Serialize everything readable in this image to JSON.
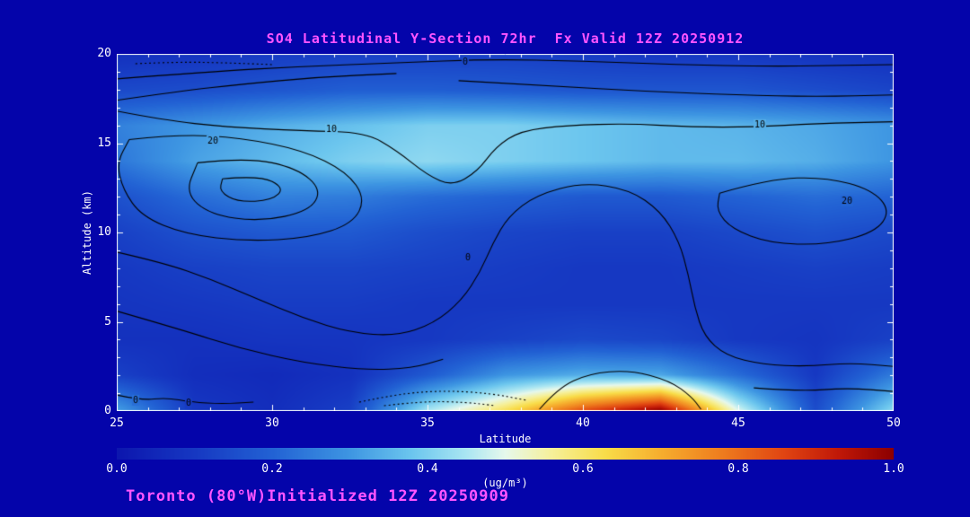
{
  "window": {
    "background": "#0404AA"
  },
  "chart_data": {
    "type": "heatmap",
    "title": "SO4 Latitudinal Y-Section 72hr  Fx Valid 12Z 20250912",
    "xlabel": "Latitude",
    "ylabel": "Altitude (km)",
    "units_label": "(ug/m³)",
    "footer": "Toronto (80°W)Initialized 12Z 20250909",
    "x_range": [
      25,
      50
    ],
    "y_range": [
      0,
      20
    ],
    "x_ticks": {
      "major": [
        25,
        30,
        35,
        40,
        45,
        50
      ],
      "minor_step": 1
    },
    "y_ticks": {
      "major": [
        0,
        5,
        10,
        15,
        20
      ],
      "minor_step": 1
    },
    "colorbar": {
      "min": 0.0,
      "max": 1.0,
      "tick_labels": [
        "0.0",
        "0.2",
        "0.4",
        "0.6",
        "0.8",
        "1.0"
      ]
    },
    "colors": {
      "background": "#0404AA",
      "frame": "#FFFFFF",
      "title": "#FF55FF",
      "footer": "#FF55FF",
      "axis_text": "#FFFFFF",
      "contour": "#000000"
    },
    "colormap": [
      {
        "v": 0.0,
        "c": "#0C16AE"
      },
      {
        "v": 0.1,
        "c": "#1638C2"
      },
      {
        "v": 0.2,
        "c": "#2262D4"
      },
      {
        "v": 0.3,
        "c": "#3E96E2"
      },
      {
        "v": 0.38,
        "c": "#6CC6EE"
      },
      {
        "v": 0.45,
        "c": "#AAE6F2"
      },
      {
        "v": 0.5,
        "c": "#E6F8EC"
      },
      {
        "v": 0.56,
        "c": "#F6F09A"
      },
      {
        "v": 0.63,
        "c": "#F8DC48"
      },
      {
        "v": 0.7,
        "c": "#F6AE2E"
      },
      {
        "v": 0.78,
        "c": "#EE7C1E"
      },
      {
        "v": 0.86,
        "c": "#E04412"
      },
      {
        "v": 0.93,
        "c": "#C01808"
      },
      {
        "v": 1.0,
        "c": "#8C0000"
      }
    ],
    "field": {
      "lats": [
        25,
        27.5,
        30,
        32.5,
        35,
        37.5,
        40,
        42.5,
        45,
        47.5,
        50
      ],
      "alts": [
        0,
        2,
        4,
        6,
        8,
        10,
        12,
        14,
        16,
        18,
        20
      ],
      "values": [
        [
          0.32,
          0.1,
          0.07,
          0.12,
          0.45,
          0.62,
          0.85,
          1.0,
          0.5,
          0.15,
          0.42
        ],
        [
          0.12,
          0.07,
          0.06,
          0.08,
          0.18,
          0.3,
          0.34,
          0.33,
          0.22,
          0.1,
          0.25
        ],
        [
          0.08,
          0.08,
          0.09,
          0.09,
          0.1,
          0.12,
          0.14,
          0.13,
          0.1,
          0.09,
          0.12
        ],
        [
          0.09,
          0.1,
          0.11,
          0.11,
          0.1,
          0.1,
          0.1,
          0.1,
          0.1,
          0.1,
          0.1
        ],
        [
          0.1,
          0.12,
          0.13,
          0.13,
          0.12,
          0.11,
          0.1,
          0.1,
          0.11,
          0.12,
          0.11
        ],
        [
          0.12,
          0.16,
          0.18,
          0.18,
          0.15,
          0.13,
          0.12,
          0.12,
          0.14,
          0.16,
          0.14
        ],
        [
          0.16,
          0.22,
          0.26,
          0.25,
          0.22,
          0.2,
          0.18,
          0.18,
          0.2,
          0.22,
          0.2
        ],
        [
          0.24,
          0.32,
          0.36,
          0.4,
          0.42,
          0.4,
          0.38,
          0.36,
          0.36,
          0.34,
          0.3
        ],
        [
          0.26,
          0.3,
          0.34,
          0.37,
          0.4,
          0.4,
          0.38,
          0.36,
          0.35,
          0.33,
          0.3
        ],
        [
          0.14,
          0.15,
          0.17,
          0.19,
          0.19,
          0.18,
          0.17,
          0.17,
          0.17,
          0.15,
          0.13
        ],
        [
          0.08,
          0.09,
          0.11,
          0.12,
          0.12,
          0.12,
          0.11,
          0.1,
          0.1,
          0.09,
          0.08
        ]
      ]
    },
    "contours": {
      "lines": [
        {
          "level": 0,
          "style": "solid",
          "points": [
            [
              25,
              18.6
            ],
            [
              28,
              19.0
            ],
            [
              31,
              19.3
            ],
            [
              34,
              19.5
            ],
            [
              37,
              19.7
            ],
            [
              40,
              19.6
            ],
            [
              43,
              19.4
            ],
            [
              46,
              19.3
            ],
            [
              48,
              19.35
            ],
            [
              50,
              19.4
            ]
          ]
        },
        {
          "level": 0,
          "style": "solid",
          "points": [
            [
              25,
              17.4
            ],
            [
              27,
              17.9
            ],
            [
              29,
              18.3
            ],
            [
              31.5,
              18.7
            ],
            [
              34,
              18.9
            ]
          ]
        },
        {
          "level": 0,
          "style": "solid",
          "points": [
            [
              36,
              18.5
            ],
            [
              39,
              18.2
            ],
            [
              42,
              17.9
            ],
            [
              45,
              17.7
            ],
            [
              47.5,
              17.6
            ],
            [
              50,
              17.7
            ]
          ]
        },
        {
          "level": 10,
          "style": "solid",
          "points": [
            [
              25,
              16.8
            ],
            [
              26.5,
              16.3
            ],
            [
              28.5,
              15.9
            ],
            [
              31,
              15.7
            ],
            [
              33,
              15.6
            ],
            [
              34,
              14.6
            ],
            [
              35,
              13.2
            ],
            [
              35.8,
              12.6
            ],
            [
              36.6,
              13.4
            ],
            [
              37.2,
              14.8
            ],
            [
              38,
              15.7
            ],
            [
              39.5,
              16.0
            ],
            [
              41.5,
              16.1
            ],
            [
              43.5,
              15.9
            ],
            [
              45.5,
              15.9
            ],
            [
              47.5,
              16.1
            ],
            [
              50,
              16.2
            ]
          ]
        },
        {
          "level": 20,
          "style": "solid",
          "points": [
            [
              25.4,
              15.2
            ],
            [
              27,
              15.5
            ],
            [
              29,
              15.3
            ],
            [
              31,
              14.6
            ],
            [
              32.4,
              13.4
            ],
            [
              33.0,
              11.9
            ],
            [
              32.6,
              10.5
            ],
            [
              31.2,
              9.7
            ],
            [
              29.2,
              9.5
            ],
            [
              27.2,
              9.9
            ],
            [
              25.8,
              10.9
            ],
            [
              25.2,
              12.4
            ],
            [
              25.0,
              13.9
            ],
            [
              25.4,
              15.2
            ]
          ]
        },
        {
          "level": 30,
          "style": "solid",
          "points": [
            [
              27.6,
              13.9
            ],
            [
              29.2,
              14.2
            ],
            [
              30.8,
              13.6
            ],
            [
              31.6,
              12.4
            ],
            [
              31.2,
              11.2
            ],
            [
              29.6,
              10.6
            ],
            [
              28.0,
              11.0
            ],
            [
              27.2,
              12.2
            ],
            [
              27.6,
              13.9
            ]
          ]
        },
        {
          "level": 40,
          "style": "solid",
          "points": [
            [
              28.4,
              13.0
            ],
            [
              29.6,
              13.2
            ],
            [
              30.4,
              12.5
            ],
            [
              30.0,
              11.8
            ],
            [
              28.9,
              11.7
            ],
            [
              28.3,
              12.3
            ],
            [
              28.4,
              13.0
            ]
          ]
        },
        {
          "level": 0,
          "style": "solid",
          "points": [
            [
              25,
              8.9
            ],
            [
              26.5,
              8.3
            ],
            [
              28,
              7.4
            ],
            [
              29.5,
              6.3
            ],
            [
              31,
              5.2
            ],
            [
              32.5,
              4.4
            ],
            [
              34,
              4.2
            ],
            [
              35.2,
              4.9
            ],
            [
              36.1,
              6.2
            ],
            [
              36.7,
              7.8
            ],
            [
              37.1,
              9.4
            ],
            [
              37.6,
              10.9
            ],
            [
              38.5,
              12.1
            ],
            [
              40,
              12.8
            ],
            [
              41.5,
              12.4
            ],
            [
              42.5,
              11.2
            ],
            [
              43.1,
              9.5
            ],
            [
              43.4,
              7.6
            ],
            [
              43.6,
              5.8
            ],
            [
              43.9,
              4.2
            ],
            [
              44.6,
              3.1
            ],
            [
              45.8,
              2.6
            ],
            [
              47.2,
              2.5
            ],
            [
              48.6,
              2.7
            ],
            [
              50,
              2.5
            ]
          ]
        },
        {
          "level": 20,
          "style": "solid",
          "points": [
            [
              44.4,
              12.2
            ],
            [
              46,
              13.0
            ],
            [
              47.8,
              13.1
            ],
            [
              49.3,
              12.4
            ],
            [
              49.9,
              11.2
            ],
            [
              49.4,
              10.0
            ],
            [
              47.8,
              9.3
            ],
            [
              46.0,
              9.4
            ],
            [
              44.8,
              10.2
            ],
            [
              44.3,
              11.2
            ],
            [
              44.4,
              12.2
            ]
          ]
        },
        {
          "level": 0,
          "style": "solid",
          "points": [
            [
              25,
              5.6
            ],
            [
              27,
              4.6
            ],
            [
              29,
              3.5
            ],
            [
              31,
              2.7
            ],
            [
              33,
              2.3
            ],
            [
              34.5,
              2.4
            ],
            [
              35.5,
              2.9
            ]
          ]
        },
        {
          "level": 0,
          "style": "solid",
          "points": [
            [
              25,
              0.9
            ],
            [
              25.8,
              0.6
            ],
            [
              26.6,
              0.75
            ],
            [
              27.4,
              0.5
            ],
            [
              28.4,
              0.4
            ],
            [
              29.4,
              0.5
            ]
          ]
        },
        {
          "level": 0,
          "style": "solid",
          "points": [
            [
              38.6,
              0.1
            ],
            [
              39.2,
              1.3
            ],
            [
              40.2,
              2.1
            ],
            [
              41.5,
              2.3
            ],
            [
              42.8,
              1.7
            ],
            [
              43.5,
              0.8
            ],
            [
              43.8,
              0.1
            ]
          ]
        },
        {
          "level": 0,
          "style": "solid",
          "points": [
            [
              45.5,
              1.3
            ],
            [
              47,
              1.1
            ],
            [
              48.5,
              1.3
            ],
            [
              50,
              1.1
            ]
          ]
        },
        {
          "level": -10,
          "style": "dotted",
          "points": [
            [
              32.8,
              0.5
            ],
            [
              34,
              0.95
            ],
            [
              35.5,
              1.15
            ],
            [
              37,
              1.0
            ],
            [
              38.2,
              0.6
            ]
          ]
        },
        {
          "level": -10,
          "style": "dotted",
          "points": [
            [
              33.6,
              0.3
            ],
            [
              34.8,
              0.55
            ],
            [
              36.2,
              0.5
            ],
            [
              37.2,
              0.3
            ]
          ]
        },
        {
          "level": -10,
          "style": "dotted",
          "points": [
            [
              25.6,
              19.45
            ],
            [
              27,
              19.55
            ],
            [
              28.5,
              19.5
            ],
            [
              30,
              19.4
            ]
          ]
        }
      ],
      "labels": [
        {
          "text": "0",
          "lat": 36.2,
          "alt": 19.55
        },
        {
          "text": "10",
          "lat": 31.9,
          "alt": 15.78
        },
        {
          "text": "10",
          "lat": 45.7,
          "alt": 16.05
        },
        {
          "text": "20",
          "lat": 28.1,
          "alt": 15.15
        },
        {
          "text": "0",
          "lat": 36.3,
          "alt": 8.6
        },
        {
          "text": "20",
          "lat": 48.5,
          "alt": 11.75
        },
        {
          "text": "0",
          "lat": 25.6,
          "alt": 0.62
        },
        {
          "text": "0",
          "lat": 27.3,
          "alt": 0.45
        }
      ]
    }
  }
}
